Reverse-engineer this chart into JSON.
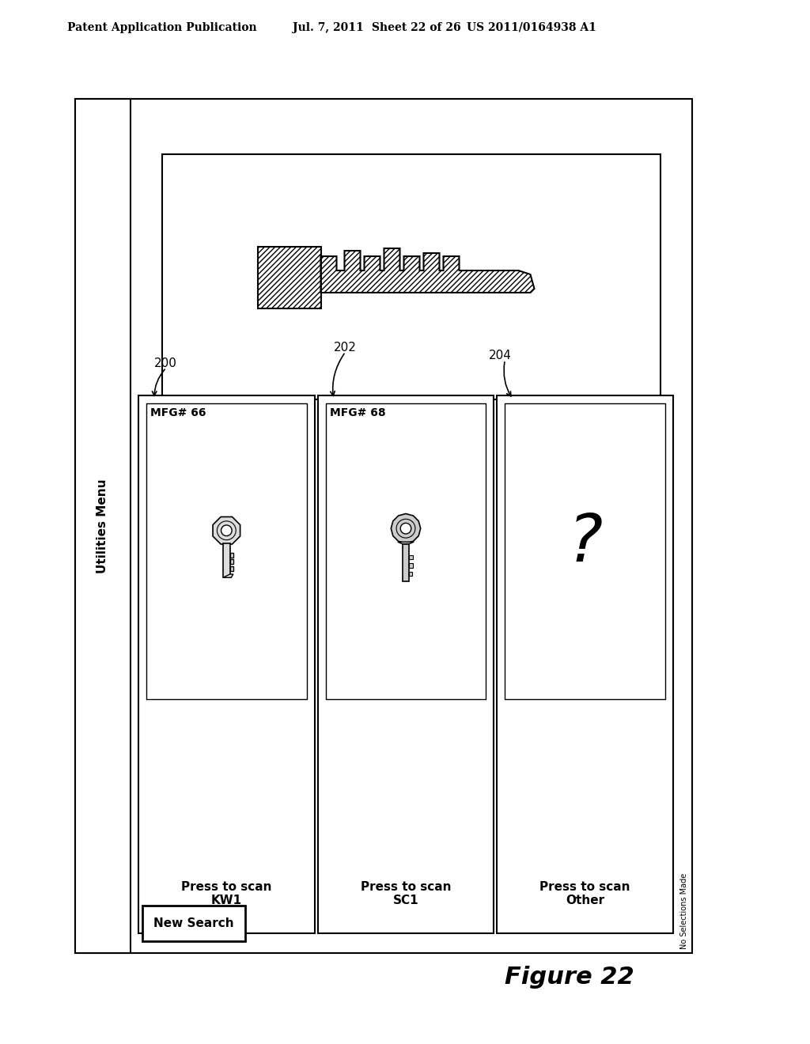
{
  "bg_color": "#ffffff",
  "header_text": "Patent Application Publication",
  "header_date": "Jul. 7, 2011",
  "header_sheet": "Sheet 22 of 26",
  "header_patent": "US 2011/0164938 A1",
  "figure_label": "Figure 22",
  "utilities_menu_label": "Utilities Menu",
  "new_search_label": "New Search",
  "ref_200": "200",
  "ref_202": "202",
  "ref_204": "204",
  "card1_mfg": "MFG# 66",
  "card1_press": "Press to scan\nKW1",
  "card2_mfg": "MFG# 68",
  "card2_press": "Press to scan\nSC1",
  "card3_press": "Press to scan\nOther",
  "no_selections": "No Selections Made"
}
